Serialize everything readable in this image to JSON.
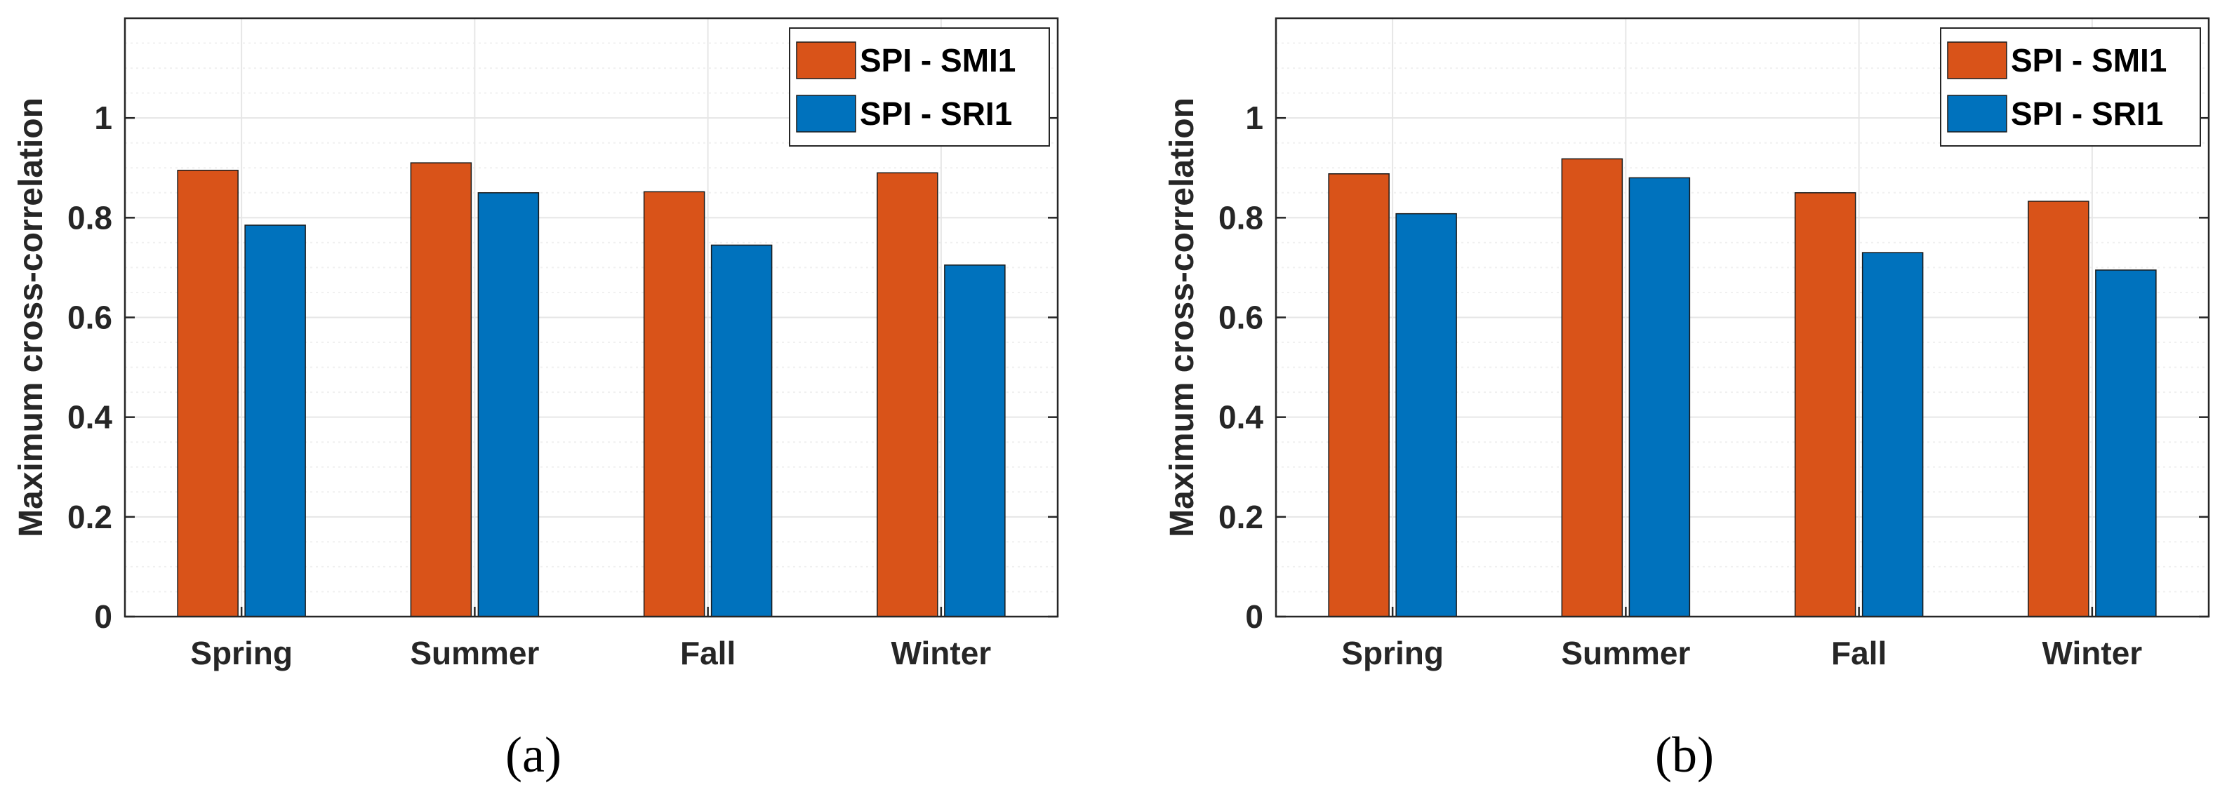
{
  "colors": {
    "smi": "#D95319",
    "sri": "#0072BD",
    "grid": "#e6e6e6",
    "minor_grid": "#f0f0f0",
    "axis": "#262626"
  },
  "chart_data": [
    {
      "type": "bar",
      "panel": "(a)",
      "categories": [
        "Spring",
        "Summer",
        "Fall",
        "Winter"
      ],
      "series": [
        {
          "name": "SPI - SMI1",
          "color_key": "smi",
          "values": [
            0.895,
            0.91,
            0.852,
            0.89
          ]
        },
        {
          "name": "SPI - SRI1",
          "color_key": "sri",
          "values": [
            0.785,
            0.85,
            0.745,
            0.705
          ]
        }
      ],
      "ylabel": "Maximum cross-correlation",
      "xlabel": "",
      "ylim": [
        0,
        1.2
      ],
      "yticks": [
        0,
        0.2,
        0.4,
        0.6,
        0.8,
        1
      ],
      "ytick_labels": [
        "0",
        "0.2",
        "0.4",
        "0.6",
        "0.8",
        "1"
      ],
      "grid": true,
      "legend": "top-right"
    },
    {
      "type": "bar",
      "panel": "(b)",
      "categories": [
        "Spring",
        "Summer",
        "Fall",
        "Winter"
      ],
      "series": [
        {
          "name": "SPI - SMI1",
          "color_key": "smi",
          "values": [
            0.888,
            0.918,
            0.85,
            0.833
          ]
        },
        {
          "name": "SPI - SRI1",
          "color_key": "sri",
          "values": [
            0.808,
            0.88,
            0.73,
            0.695
          ]
        }
      ],
      "ylabel": "Maximum cross-correlation",
      "xlabel": "",
      "ylim": [
        0,
        1.2
      ],
      "yticks": [
        0,
        0.2,
        0.4,
        0.6,
        0.8,
        1
      ],
      "ytick_labels": [
        "0",
        "0.2",
        "0.4",
        "0.6",
        "0.8",
        "1"
      ],
      "grid": true,
      "legend": "top-right"
    }
  ]
}
